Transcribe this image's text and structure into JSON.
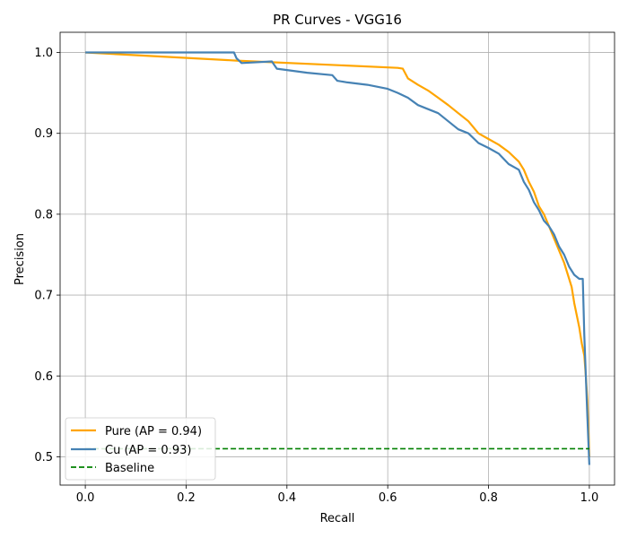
{
  "chart_data": {
    "type": "line",
    "title": "PR Curves - VGG16",
    "xlabel": "Recall",
    "ylabel": "Precision",
    "xlim": [
      -0.05,
      1.05
    ],
    "ylim": [
      0.465,
      1.025
    ],
    "xticks": [
      0.0,
      0.2,
      0.4,
      0.6,
      0.8,
      1.0
    ],
    "yticks": [
      0.5,
      0.6,
      0.7,
      0.8,
      0.9,
      1.0
    ],
    "xtick_labels": [
      "0.0",
      "0.2",
      "0.4",
      "0.6",
      "0.8",
      "1.0"
    ],
    "ytick_labels": [
      "0.5",
      "0.6",
      "0.7",
      "0.8",
      "0.9",
      "1.0"
    ],
    "grid": true,
    "legend_position": "lower-left",
    "series": [
      {
        "name": "Pure (AP = 0.94)",
        "color": "#FFA500",
        "style": "solid",
        "points": [
          [
            0.0,
            1.0
          ],
          [
            0.3,
            0.99
          ],
          [
            0.62,
            0.981
          ],
          [
            0.63,
            0.98
          ],
          [
            0.64,
            0.968
          ],
          [
            0.66,
            0.96
          ],
          [
            0.68,
            0.953
          ],
          [
            0.7,
            0.944
          ],
          [
            0.72,
            0.935
          ],
          [
            0.74,
            0.925
          ],
          [
            0.76,
            0.915
          ],
          [
            0.78,
            0.9
          ],
          [
            0.8,
            0.893
          ],
          [
            0.82,
            0.886
          ],
          [
            0.84,
            0.877
          ],
          [
            0.86,
            0.865
          ],
          [
            0.87,
            0.855
          ],
          [
            0.88,
            0.84
          ],
          [
            0.89,
            0.828
          ],
          [
            0.9,
            0.81
          ],
          [
            0.91,
            0.8
          ],
          [
            0.92,
            0.785
          ],
          [
            0.93,
            0.77
          ],
          [
            0.94,
            0.755
          ],
          [
            0.95,
            0.74
          ],
          [
            0.96,
            0.72
          ],
          [
            0.965,
            0.71
          ],
          [
            0.97,
            0.69
          ],
          [
            0.975,
            0.675
          ],
          [
            0.98,
            0.66
          ],
          [
            0.985,
            0.64
          ],
          [
            0.99,
            0.625
          ],
          [
            0.993,
            0.6
          ],
          [
            0.996,
            0.57
          ],
          [
            1.0,
            0.5
          ]
        ]
      },
      {
        "name": "Cu (AP = 0.93)",
        "color": "#4682B4",
        "style": "solid",
        "points": [
          [
            0.0,
            1.0
          ],
          [
            0.295,
            1.0
          ],
          [
            0.3,
            0.993
          ],
          [
            0.31,
            0.987
          ],
          [
            0.37,
            0.989
          ],
          [
            0.38,
            0.98
          ],
          [
            0.44,
            0.975
          ],
          [
            0.49,
            0.972
          ],
          [
            0.5,
            0.965
          ],
          [
            0.52,
            0.963
          ],
          [
            0.56,
            0.96
          ],
          [
            0.6,
            0.955
          ],
          [
            0.62,
            0.95
          ],
          [
            0.64,
            0.944
          ],
          [
            0.66,
            0.935
          ],
          [
            0.68,
            0.93
          ],
          [
            0.7,
            0.925
          ],
          [
            0.72,
            0.915
          ],
          [
            0.74,
            0.905
          ],
          [
            0.76,
            0.9
          ],
          [
            0.78,
            0.888
          ],
          [
            0.8,
            0.882
          ],
          [
            0.82,
            0.875
          ],
          [
            0.84,
            0.862
          ],
          [
            0.86,
            0.855
          ],
          [
            0.87,
            0.84
          ],
          [
            0.88,
            0.83
          ],
          [
            0.89,
            0.815
          ],
          [
            0.9,
            0.805
          ],
          [
            0.91,
            0.792
          ],
          [
            0.92,
            0.785
          ],
          [
            0.93,
            0.775
          ],
          [
            0.94,
            0.76
          ],
          [
            0.95,
            0.75
          ],
          [
            0.96,
            0.735
          ],
          [
            0.97,
            0.725
          ],
          [
            0.98,
            0.72
          ],
          [
            0.987,
            0.72
          ],
          [
            0.99,
            0.65
          ],
          [
            0.993,
            0.6
          ],
          [
            0.996,
            0.55
          ],
          [
            1.0,
            0.49
          ]
        ]
      },
      {
        "name": "Baseline",
        "color": "#008000",
        "style": "dashed",
        "points": [
          [
            0.0,
            0.51
          ],
          [
            1.0,
            0.51
          ]
        ]
      }
    ]
  }
}
